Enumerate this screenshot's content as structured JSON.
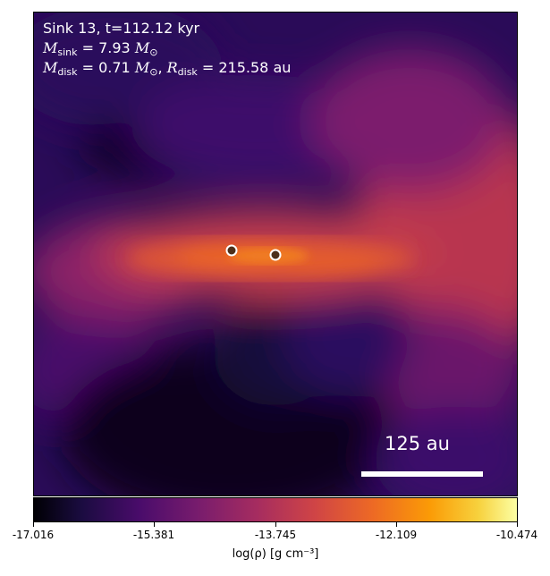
{
  "panel": {
    "line1": "Sink 13, t=112.12 kyr",
    "m_sink_var": "M",
    "m_sink_sub": "sink",
    "m_sink_value": " = 7.93 ",
    "m_unit_var": "M",
    "m_unit_sub": "⊙",
    "m_disk_var": "M",
    "m_disk_sub": "disk",
    "m_disk_value": " = 0.71 ",
    "comma": ", ",
    "r_disk_var": "R",
    "r_disk_sub": "disk",
    "r_disk_value": " = 215.58 au",
    "scale_label": "125 au"
  },
  "sinks": [
    {
      "name": "sink-a",
      "color": "#4d2f1a"
    },
    {
      "name": "sink-b",
      "color": "#4d2f1a"
    }
  ],
  "colorbar": {
    "colormap": "inferno",
    "vmin": -17.016,
    "vmax": -10.474,
    "ticks": [
      "-17.016",
      "-15.381",
      "-13.745",
      "-12.109",
      "-10.474"
    ],
    "label": "log(ρ) [g cm⁻³]"
  }
}
